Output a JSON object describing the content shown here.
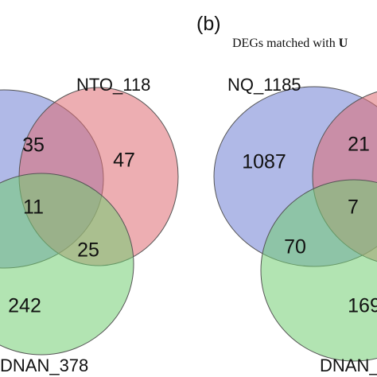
{
  "colors": {
    "blue_set": "#6f7fd4",
    "red_set": "#df6b72",
    "green_set": "#72cd72",
    "outline": "#555555"
  },
  "left_diagram": {
    "sets": {
      "nto_label": "NTO_118",
      "dnan_label": "DNAN_378"
    },
    "regions": {
      "blue_red": "35",
      "red_only": "47",
      "center": "11",
      "red_green": "25",
      "green_only": "242"
    }
  },
  "right_diagram": {
    "panel_label": "(b)",
    "subtitle": "DEGs matched with ",
    "subtitle_cut": "U",
    "sets": {
      "nq_label": "NQ_1185",
      "dnan_label": "DNAN_"
    },
    "regions": {
      "blue_only": "1087",
      "blue_red": "21",
      "center": "7",
      "blue_green": "70",
      "green_only": "169"
    }
  }
}
